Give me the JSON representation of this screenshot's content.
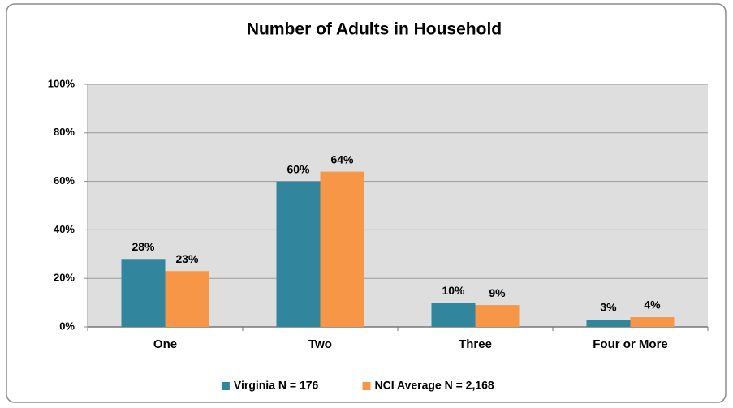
{
  "chart_data": {
    "type": "bar",
    "title": "Number of Adults in Household",
    "categories": [
      "One",
      "Two",
      "Three",
      "Four or More"
    ],
    "series": [
      {
        "name": "Virginia N = 176",
        "color": "#31859c",
        "values": [
          28,
          60,
          10,
          3
        ],
        "value_labels": [
          "28%",
          "60%",
          "10%",
          "3%"
        ]
      },
      {
        "name": "NCI Average N = 2,168",
        "color": "#f79646",
        "values": [
          23,
          64,
          9,
          4
        ],
        "value_labels": [
          "23%",
          "64%",
          "9%",
          "4%"
        ]
      }
    ],
    "ylim": [
      0,
      100
    ],
    "yticks": [
      {
        "value": 0,
        "label": "0%"
      },
      {
        "value": 20,
        "label": "20%"
      },
      {
        "value": 40,
        "label": "40%"
      },
      {
        "value": 60,
        "label": "60%"
      },
      {
        "value": 80,
        "label": "80%"
      },
      {
        "value": 100,
        "label": "100%"
      }
    ],
    "grid": true,
    "legend": "bottom"
  }
}
